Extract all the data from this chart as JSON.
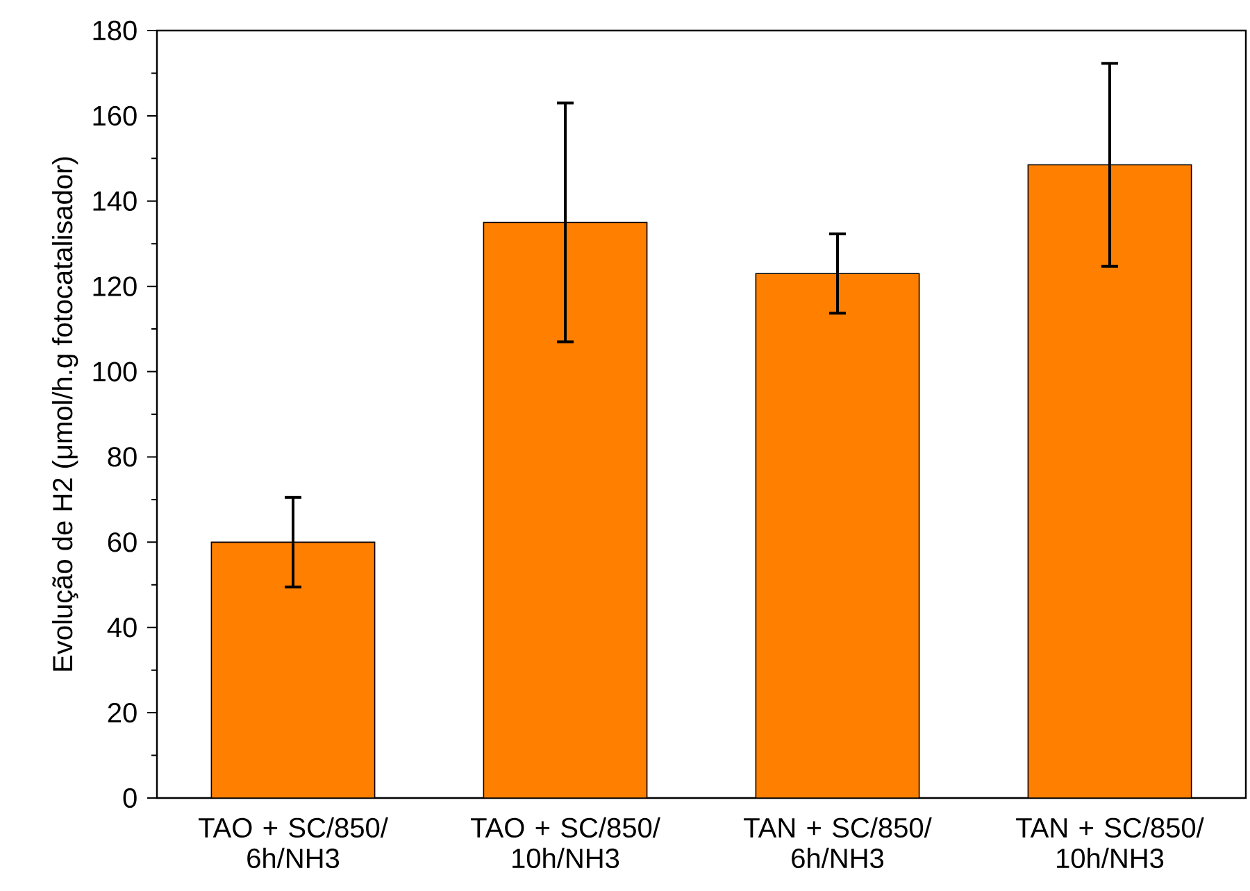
{
  "chart_data": {
    "type": "bar",
    "ylabel": "Evolução de H2 (μmol/h.g fotocatalisador)",
    "categories": [
      "TAO + SC/850/ 6h/NH3",
      "TAO + SC/850/ 10h/NH3",
      "TAN + SC/850/ 6h/NH3",
      "TAN + SC/850/ 10h/NH3"
    ],
    "values": [
      60,
      135,
      123,
      148.5
    ],
    "errors": [
      10.5,
      28,
      9.3,
      23.8
    ],
    "color": "#ff7f00",
    "ylim": [
      0,
      180
    ],
    "yticks": [
      0,
      20,
      40,
      60,
      80,
      100,
      120,
      140,
      160,
      180
    ]
  }
}
